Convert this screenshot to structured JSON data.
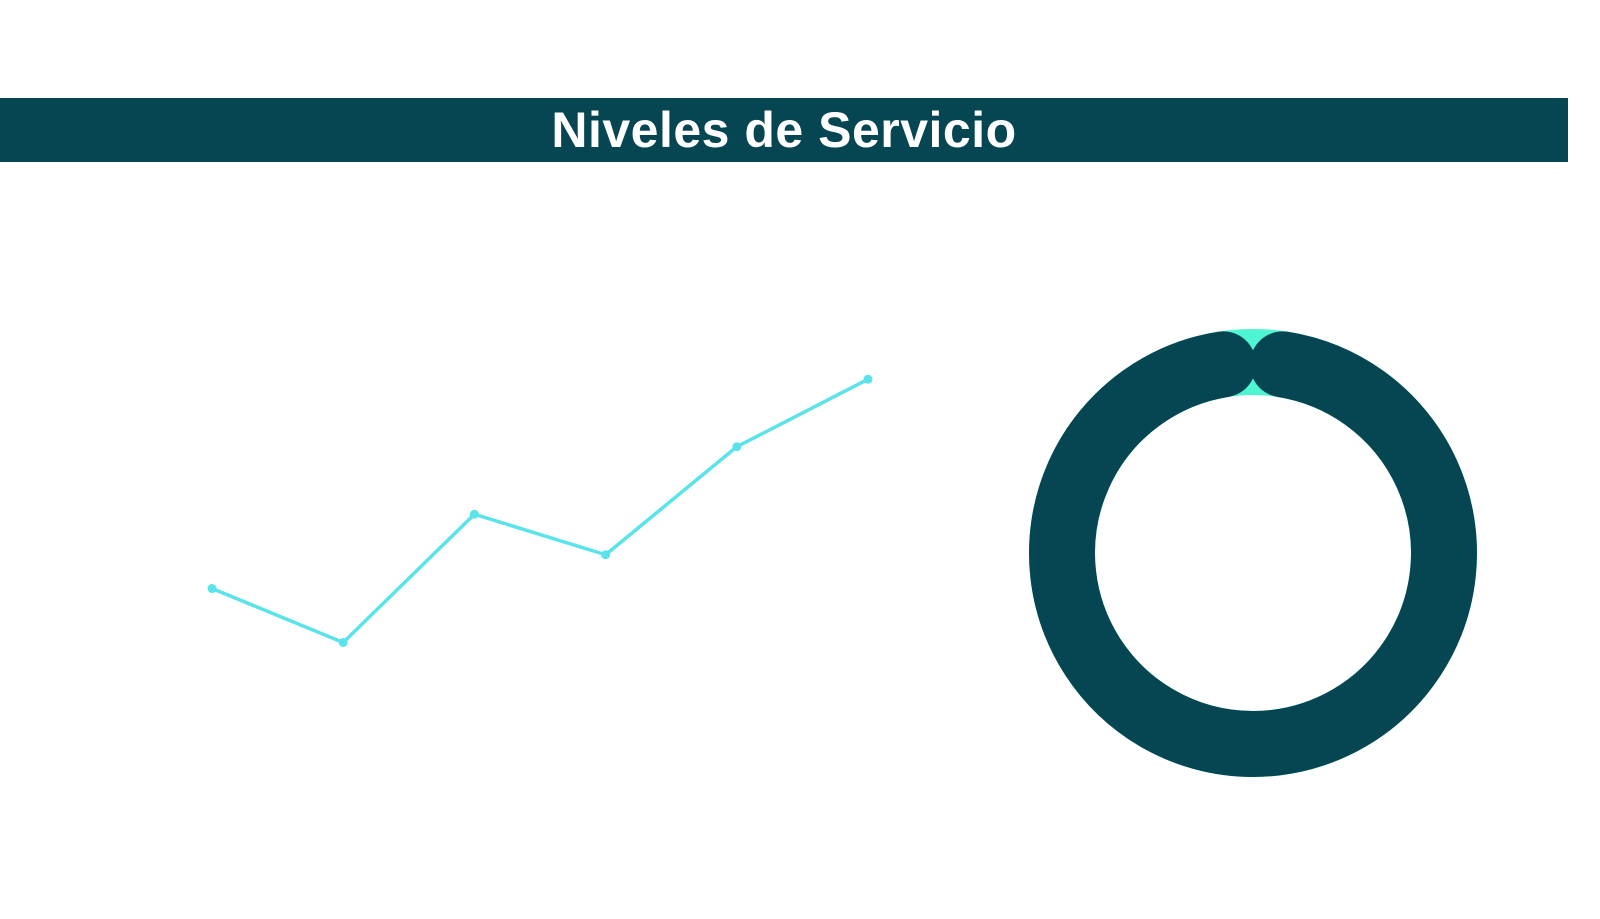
{
  "header": {
    "title": "Niveles de Servicio"
  },
  "colors": {
    "banner": "#054652",
    "line": "#5BE3EA",
    "donut_main": "#054652",
    "donut_rest": "#4DF5D2",
    "title_text": "#FFFFFF"
  },
  "chart_data": [
    {
      "type": "line",
      "title": "",
      "xlabel": "",
      "ylabel": "",
      "x": [
        1,
        2,
        3,
        4,
        5,
        6
      ],
      "series": [
        {
          "values": [
            38,
            30,
            49,
            43,
            59,
            69
          ]
        }
      ],
      "ylim": [
        0,
        100
      ],
      "grid": false,
      "legend": "none"
    },
    {
      "type": "pie",
      "style": "donut",
      "title": "",
      "values": [
        95,
        5
      ]
    }
  ]
}
